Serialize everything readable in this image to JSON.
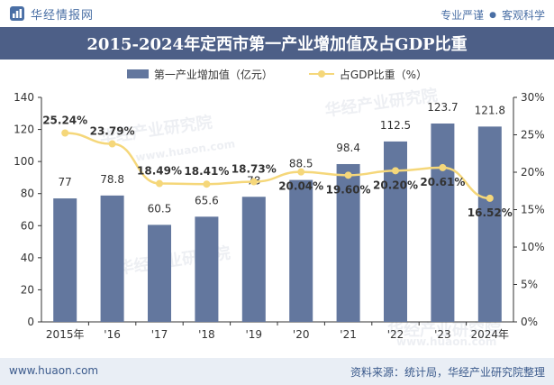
{
  "header": {
    "brand_name": "华经情报网",
    "tagline_left": "专业严谨",
    "tagline_right": "客观科学",
    "title": "2015-2024年定西市第一产业增加值及占GDP比重"
  },
  "colors": {
    "bar": "#63779e",
    "line": "#f5d77a",
    "title_bg": "#4d5f87"
  },
  "watermark": {
    "text_cn": "华经产业研究院",
    "text_url": "www.huaon.com"
  },
  "footer": {
    "website": "www.huaon.com",
    "source": "资料来源：统计局，华经产业研究院整理"
  },
  "chart_data": {
    "type": "bar",
    "categories": [
      "2015年",
      "'16",
      "'17",
      "'18",
      "'19",
      "'20",
      "'21",
      "'22",
      "'23",
      "2024年"
    ],
    "series": [
      {
        "name": "第一产业增加值（亿元）",
        "type": "bar",
        "axis": "left",
        "values": [
          77,
          78.8,
          60.5,
          65.6,
          78,
          88.5,
          98.4,
          112.5,
          123.7,
          121.8
        ],
        "labels": [
          "77",
          "78.8",
          "60.5",
          "65.6",
          "78",
          "88.5",
          "98.4",
          "112.5",
          "123.7",
          "121.8"
        ]
      },
      {
        "name": "占GDP比重（%）",
        "type": "line",
        "axis": "right",
        "values": [
          25.24,
          23.79,
          18.49,
          18.41,
          18.73,
          20.04,
          19.6,
          20.2,
          20.61,
          16.52
        ],
        "labels": [
          "25.24%",
          "23.79%",
          "18.49%",
          "18.41%",
          "18.73%",
          "20.04%",
          "19.60%",
          "20.20%",
          "20.61%",
          "16.52%"
        ]
      }
    ],
    "y_left": {
      "ylim": [
        0,
        140
      ],
      "ticks": [
        "0",
        "20",
        "40",
        "60",
        "80",
        "100",
        "120",
        "140"
      ]
    },
    "y_right": {
      "ylim": [
        0,
        30
      ],
      "ticks": [
        "0%",
        "5%",
        "10%",
        "15%",
        "20%",
        "25%",
        "30%"
      ]
    },
    "legend_position": "top-center",
    "grid": false
  }
}
